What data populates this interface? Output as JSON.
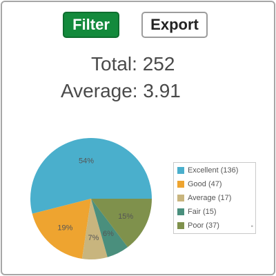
{
  "toolbar": {
    "filter_label": "Filter",
    "export_label": "Export"
  },
  "stats": {
    "total_text": "Total: 252",
    "average_text": "Average: 3.91"
  },
  "chart_data": {
    "type": "pie",
    "categories": [
      "Excellent",
      "Good",
      "Average",
      "Fair",
      "Poor"
    ],
    "values": [
      136,
      47,
      17,
      15,
      37
    ],
    "slice_labels": [
      "54%",
      "19%",
      "7%",
      "6%",
      "15%"
    ],
    "colors": [
      "#4aafcc",
      "#eea430",
      "#c8b57e",
      "#4a8f7d",
      "#7f914c"
    ],
    "legend_entries": [
      "Excellent (136)",
      "Good (47)",
      "Average (17)",
      "Fair (15)",
      "Poor (37)"
    ],
    "legend_placement": "right",
    "title": ""
  }
}
